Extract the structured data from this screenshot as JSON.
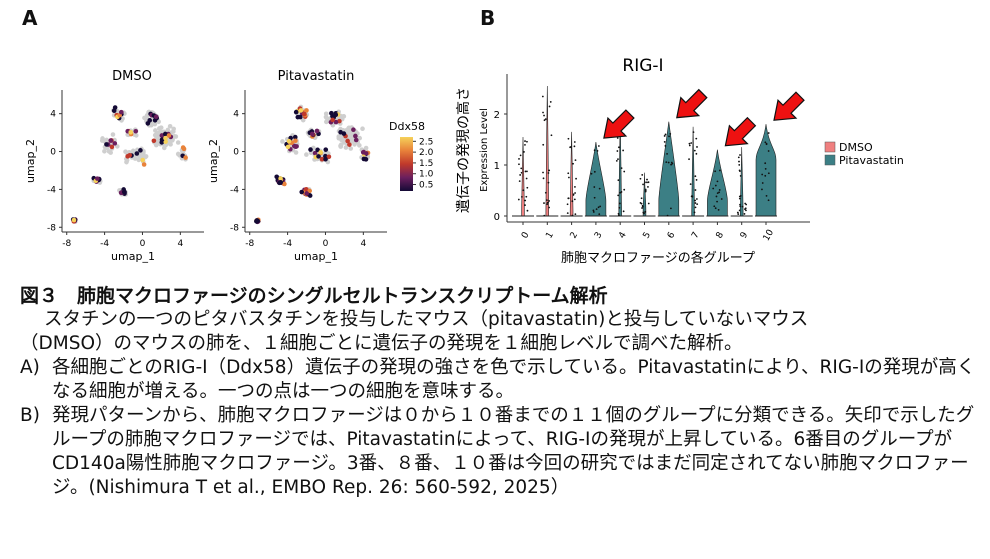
{
  "panels": {
    "a_label": "A",
    "b_label": "B"
  },
  "chart_data": [
    {
      "type": "scatter",
      "panel": "A",
      "subplots": [
        {
          "title": "DMSO",
          "xlabel": "umap_1",
          "ylabel": "umap_2"
        },
        {
          "title": "Pitavastatin",
          "xlabel": "umap_1",
          "ylabel": "umap_2"
        }
      ],
      "x_ticks": [
        "-8",
        "-4",
        "0",
        "4"
      ],
      "y_ticks": [
        "4",
        "0",
        "-4",
        "-8"
      ],
      "xlim": [
        -8.5,
        6.5
      ],
      "ylim": [
        -8.5,
        6.5
      ],
      "colorbar": {
        "title": "Ddx58",
        "ticks": [
          "2.5",
          "2.0",
          "1.5",
          "1.0",
          "0.5"
        ],
        "range": [
          0.2,
          2.7
        ],
        "colors": [
          "#140a35",
          "#6b1f5e",
          "#c0392b",
          "#e8823a",
          "#f6d25a"
        ]
      },
      "background_color": "#cfcfcf"
    },
    {
      "type": "violin",
      "panel": "B",
      "title": "RIG-I",
      "ylabel_main": "遺伝子の発現の高さ",
      "ylabel_sub": "Expression Level",
      "xlabel": "肺胞マクロファージの各グループ",
      "categories": [
        "0",
        "1",
        "2",
        "3",
        "4",
        "5",
        "6",
        "7",
        "8",
        "9",
        "10"
      ],
      "y_ticks": [
        "0",
        "1",
        "2"
      ],
      "ylim": [
        0,
        2.7
      ],
      "legend": [
        {
          "name": "DMSO",
          "color": "#f08080"
        },
        {
          "name": "Pitavastatin",
          "color": "#3c7f85"
        }
      ],
      "legend_position": "right",
      "series_by_category": [
        "DMSO",
        "DMSO",
        "DMSO",
        "Pitavastatin",
        "Pitavastatin",
        "Pitavastatin",
        "Pitavastatin",
        "Pitavastatin",
        "Pitavastatin",
        "Pitavastatin",
        "Pitavastatin"
      ],
      "violin_max": [
        1.55,
        2.55,
        1.65,
        1.45,
        1.9,
        0.85,
        1.85,
        1.75,
        1.3,
        1.35,
        1.8
      ],
      "arrow_categories": [
        "3",
        "6",
        "8",
        "10"
      ],
      "arrow_color": "#ee1111"
    }
  ],
  "caption": {
    "title": "図３　肺胞マクロファージのシングルセルトランスクリプトーム解析",
    "intro1": "スタチンの一つのピタバスタチンを投与したマウス（pitavastatin)と投与していないマウス",
    "intro2": "（DMSO）のマウスの肺を、１細胞ごとに遺伝子の発現を１細胞レベルで調べた解析。",
    "a_label": "A)",
    "a_text": "各細胞ごとのRIG-I（Ddx58）遺伝子の発現の強さを色で示している。Pitavastatinにより、RIG-Iの発現が高くなる細胞が増える。一つの点は一つの細胞を意味する。",
    "b_label": "B)",
    "b_text": "発現パターンから、肺胞マクロファージは０から１０番までの１１個のグループに分類できる。矢印で示したグループの肺胞マクロファージでは、Pitavastatinによって、RIG-Iの発現が上昇している。6番目のグループがCD140a陽性肺胞マクロファージ。3番、８番、１０番は今回の研究ではまだ同定されてない肺胞マクロファージ。(Nishimura T et al., EMBO Rep. 26: 560-592, 2025）"
  }
}
